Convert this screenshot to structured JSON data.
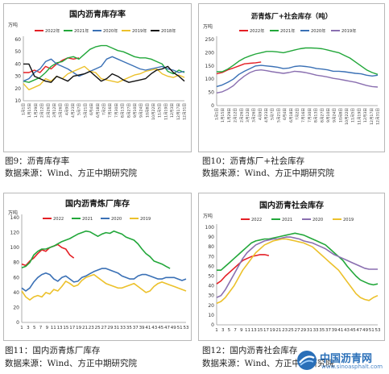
{
  "colors": {
    "s2022": "#e41f25",
    "s2021": "#22a73a",
    "s2020": "#3a70b5",
    "s2019": "#ecc12b",
    "s2018": "#111111",
    "s2020b": "#8a6fb0"
  },
  "chart_data": [
    {
      "id": "c1",
      "type": "line",
      "title": "国内沥青库存率",
      "unit": "万吨",
      "ylim": [
        10,
        60
      ],
      "yticks": [
        10,
        20,
        30,
        40,
        50,
        60
      ],
      "xticks": [
        "1月1日",
        "1月15日",
        "1月29日",
        "2月12日",
        "2月26日",
        "3月12日",
        "3月26日",
        "4月9日",
        "4月23日",
        "5月7日",
        "5月21日",
        "6月4日",
        "6月18日",
        "7月2日",
        "7月16日",
        "7月30日",
        "8月13日",
        "8月27日",
        "9月10日",
        "9月24日",
        "10月8日",
        "10月22日",
        "11月5日",
        "11月19日",
        "12月3日",
        "12月17日",
        "12月31日"
      ],
      "legend": [
        "2022年",
        "2021年",
        "2020年",
        "2019年",
        "2018年"
      ],
      "series": [
        {
          "name": "2022年",
          "color_key": "s2022",
          "values": [
            33,
            33,
            35,
            33,
            38,
            36,
            40,
            43,
            45,
            44,
            45
          ]
        },
        {
          "name": "2021年",
          "color_key": "s2021",
          "values": [
            26,
            25,
            27,
            29,
            33,
            38,
            41,
            42,
            45,
            46,
            44,
            48,
            52,
            54,
            55,
            55,
            53,
            51,
            50,
            48,
            46,
            45,
            45,
            44,
            42,
            40,
            34,
            32,
            35,
            33
          ]
        },
        {
          "name": "2020年",
          "color_key": "s2020",
          "values": [
            26,
            28,
            33,
            36,
            42,
            44,
            40,
            38,
            36,
            33,
            30,
            32,
            34,
            36,
            38,
            44,
            46,
            44,
            42,
            40,
            38,
            36,
            35,
            36,
            37,
            38,
            36,
            35,
            33,
            34
          ]
        },
        {
          "name": "2019年",
          "color_key": "s2019",
          "values": [
            24,
            19,
            21,
            23,
            28,
            26,
            30,
            28,
            32,
            34,
            36,
            38,
            34,
            33,
            28,
            27,
            26,
            25,
            27,
            29,
            31,
            32,
            34,
            35,
            36,
            32,
            30,
            29,
            31,
            29
          ]
        },
        {
          "name": "2018年",
          "color_key": "s2018",
          "values": [
            40,
            40,
            30,
            28,
            26,
            25,
            30,
            28,
            26,
            30,
            31,
            32,
            34,
            30,
            26,
            28,
            32,
            30,
            27,
            25,
            26,
            27,
            28,
            32,
            35,
            36,
            38,
            33,
            30,
            26
          ]
        }
      ]
    },
    {
      "id": "c2",
      "type": "line",
      "title": "沥青炼厂+社会库存（吨）",
      "unit": "万吨",
      "ylim": [
        0,
        250
      ],
      "yticks": [
        0,
        50,
        100,
        150,
        200,
        250
      ],
      "xticks": [
        "1月1日",
        "1月15日",
        "1月29日",
        "2月12日",
        "2月26日",
        "3月12日",
        "3月26日",
        "4月9日",
        "4月23日",
        "5月7日",
        "5月21日",
        "6月4日",
        "6月18日",
        "7月2日",
        "7月16日",
        "7月30日",
        "8月13日",
        "8月27日",
        "9月10日",
        "9月24日",
        "10月8日",
        "10月22日",
        "11月5日",
        "11月19日",
        "12月3日",
        "12月17日",
        "12月31日"
      ],
      "legend": [
        "2022年",
        "2021年",
        "2020年",
        "2019年"
      ],
      "series": [
        {
          "name": "2022年",
          "color_key": "s2022",
          "values": [
            120,
            125,
            135,
            142,
            150,
            158,
            160,
            162,
            165
          ]
        },
        {
          "name": "2021年",
          "color_key": "s2021",
          "values": [
            128,
            128,
            138,
            152,
            168,
            180,
            188,
            195,
            200,
            205,
            205,
            203,
            200,
            205,
            210,
            215,
            218,
            218,
            217,
            215,
            210,
            205,
            200,
            190,
            180,
            165,
            150,
            135,
            125,
            118
          ]
        },
        {
          "name": "2020年",
          "color_key": "s2020",
          "values": [
            72,
            78,
            88,
            100,
            118,
            130,
            140,
            150,
            152,
            150,
            148,
            145,
            140,
            142,
            148,
            150,
            148,
            145,
            140,
            138,
            135,
            130,
            130,
            128,
            125,
            122,
            120,
            115,
            112,
            115
          ]
        },
        {
          "name": "2019年",
          "color_key": "s2020b",
          "values": [
            48,
            52,
            62,
            75,
            95,
            112,
            125,
            133,
            135,
            132,
            128,
            125,
            122,
            125,
            130,
            128,
            125,
            120,
            115,
            112,
            108,
            103,
            100,
            96,
            92,
            88,
            82,
            76,
            72,
            70
          ]
        }
      ]
    },
    {
      "id": "c3",
      "type": "line",
      "title": "国内沥青炼厂库存",
      "unit": "万吨",
      "ylim": [
        0,
        140
      ],
      "yticks": [
        0,
        20,
        40,
        60,
        80,
        100,
        120,
        140
      ],
      "xticks": [
        "1",
        "3",
        "5",
        "7",
        "9",
        "11",
        "13",
        "15",
        "17",
        "19",
        "21",
        "23",
        "25",
        "27",
        "29",
        "31",
        "33",
        "35",
        "37",
        "39",
        "41",
        "43",
        "45",
        "47",
        "49",
        "51",
        "53"
      ],
      "legend": [
        "2022",
        "2021",
        "2020",
        "2019"
      ],
      "series": [
        {
          "name": "2022",
          "color_key": "s2022",
          "values": [
            78,
            76,
            82,
            86,
            92,
            97,
            95,
            100,
            102,
            104,
            100,
            98,
            90,
            86
          ]
        },
        {
          "name": "2021",
          "color_key": "s2021",
          "values": [
            73,
            75,
            80,
            90,
            95,
            98,
            98,
            100,
            102,
            105,
            108,
            110,
            112,
            115,
            118,
            120,
            122,
            121,
            118,
            115,
            118,
            120,
            119,
            122,
            120,
            118,
            114,
            112,
            110,
            105,
            98,
            92,
            88,
            82,
            80,
            78,
            75,
            72
          ]
        },
        {
          "name": "2020",
          "color_key": "s2020",
          "values": [
            46,
            42,
            46,
            54,
            60,
            64,
            66,
            64,
            58,
            55,
            60,
            62,
            58,
            54,
            55,
            60,
            62,
            65,
            68,
            70,
            72,
            72,
            70,
            68,
            66,
            62,
            60,
            58,
            58,
            62,
            64,
            64,
            62,
            60,
            58,
            58,
            60,
            60,
            60,
            58,
            56,
            58
          ]
        },
        {
          "name": "2019",
          "color_key": "s2019",
          "values": [
            42,
            34,
            30,
            34,
            36,
            34,
            40,
            38,
            44,
            42,
            48,
            55,
            52,
            48,
            50,
            56,
            60,
            62,
            64,
            60,
            56,
            52,
            50,
            48,
            46,
            46,
            48,
            50,
            52,
            48,
            44,
            40,
            42,
            48,
            52,
            54,
            52,
            50,
            48,
            46,
            44,
            42
          ]
        }
      ]
    },
    {
      "id": "c4",
      "type": "line",
      "title": "国内沥青社会库存",
      "unit": "万吨",
      "ylim": [
        0,
        100
      ],
      "yticks": [
        0,
        10,
        20,
        30,
        40,
        50,
        60,
        70,
        80,
        90,
        100
      ],
      "xticks": [
        "1",
        "3",
        "5",
        "7",
        "9",
        "11",
        "13",
        "15",
        "17",
        "19",
        "21",
        "23",
        "25",
        "27",
        "29",
        "31",
        "33",
        "35",
        "37",
        "39",
        "41",
        "43",
        "45",
        "47",
        "49",
        "51",
        "53"
      ],
      "legend": [
        "2022",
        "2021",
        "2020",
        "2019"
      ],
      "series": [
        {
          "name": "2022",
          "color_key": "s2022",
          "values": [
            42,
            45,
            50,
            54,
            58,
            62,
            66,
            68,
            70,
            71,
            72,
            72,
            71
          ]
        },
        {
          "name": "2021",
          "color_key": "s2021",
          "values": [
            56,
            56,
            60,
            64,
            68,
            72,
            76,
            80,
            84,
            86,
            87,
            88,
            88,
            89,
            90,
            91,
            92,
            93,
            94,
            93,
            92,
            90,
            88,
            86,
            84,
            82,
            78,
            74,
            70,
            66,
            60,
            55,
            50,
            46,
            44,
            42,
            41,
            42
          ]
        },
        {
          "name": "2020",
          "color_key": "s2020b",
          "values": [
            28,
            30,
            36,
            44,
            52,
            60,
            68,
            74,
            78,
            82,
            84,
            86,
            87,
            88,
            88,
            89,
            90,
            90,
            89,
            88,
            86,
            85,
            84,
            82,
            80,
            78,
            75,
            72,
            70,
            68,
            66,
            64,
            62,
            60,
            58,
            57,
            57,
            57
          ]
        },
        {
          "name": "2019",
          "color_key": "s2019",
          "values": [
            22,
            24,
            28,
            34,
            40,
            48,
            56,
            62,
            68,
            74,
            78,
            82,
            84,
            86,
            87,
            88,
            88,
            87,
            86,
            85,
            84,
            82,
            80,
            76,
            72,
            68,
            64,
            60,
            56,
            50,
            44,
            38,
            32,
            28,
            26,
            25,
            28,
            30
          ]
        }
      ]
    }
  ],
  "captions": {
    "c1_title": "图9：沥青库存率",
    "c1_source": "数据来源：Wind、方正中期研究院",
    "c2_title": "图10：沥青炼厂+社会库存",
    "c2_source": "数据来源：Wind、方正中期研究院",
    "c3_title": "图11：国内沥青炼厂库存",
    "c3_source": "数据来源：Wind、方正中期研究院",
    "c4_title": "图12：国内沥青社会库存",
    "c4_source": "数据来源：Wind、方正中期研究院"
  },
  "watermark": {
    "title": "中国沥青网",
    "url": "www.sinoasphalt.com",
    "icon": "asphalt-network-logo-icon"
  }
}
